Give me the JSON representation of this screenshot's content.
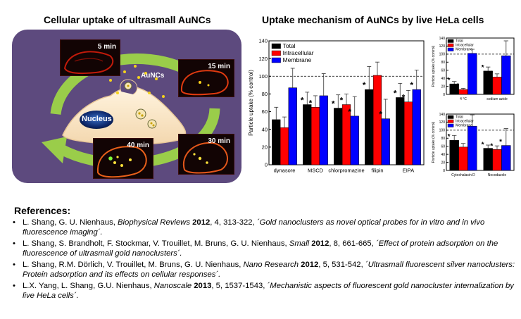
{
  "left_panel": {
    "title": "Cellular uptake of ultrasmall AuNCs",
    "aunc_label": "AuNCs",
    "nucleus_label": "Nucleus",
    "time_points": [
      "5 min",
      "15 min",
      "30 min",
      "40 min"
    ]
  },
  "right_panel": {
    "title": "Uptake mechanism of AuNCs by live HeLa cells"
  },
  "chart_data": [
    {
      "type": "bar",
      "ylabel": "Particle uptake (% control)",
      "ylim": [
        0,
        140
      ],
      "yticks": [
        0,
        20,
        40,
        60,
        80,
        100,
        120,
        140
      ],
      "categories": [
        "dynasore",
        "MSCD",
        "chlorpromazine",
        "filipin",
        "EIPA"
      ],
      "series": [
        {
          "name": "Total",
          "color": "#000000",
          "values": [
            51,
            68,
            64,
            85,
            76
          ],
          "errors": [
            14,
            14,
            15,
            26,
            16
          ],
          "significant": [
            false,
            true,
            true,
            true,
            true
          ]
        },
        {
          "name": "Intracellular",
          "color": "#ff0000",
          "values": [
            42,
            65,
            68,
            101,
            71
          ],
          "errors": [
            12,
            13,
            12,
            15,
            13
          ],
          "significant": [
            false,
            true,
            true,
            false,
            true
          ]
        },
        {
          "name": "Membrane",
          "color": "#0000ff",
          "values": [
            87,
            78,
            55,
            52,
            85
          ],
          "errors": [
            22,
            25,
            22,
            22,
            22
          ],
          "significant": [
            false,
            false,
            true,
            true,
            true
          ]
        }
      ],
      "reference_line": 100,
      "legend_position": "top-left"
    },
    {
      "type": "bar",
      "ylabel": "Particle uptake (% control)",
      "ylim": [
        0,
        140
      ],
      "yticks": [
        0,
        20,
        40,
        60,
        80,
        100,
        120,
        140
      ],
      "categories": [
        "4 °C",
        "sodium azide"
      ],
      "series": [
        {
          "name": "Total",
          "color": "#000000",
          "values": [
            26,
            58
          ],
          "errors": [
            6,
            10
          ],
          "significant": [
            true,
            true
          ]
        },
        {
          "name": "Intracellular",
          "color": "#ff0000",
          "values": [
            12,
            43
          ],
          "errors": [
            3,
            8
          ],
          "significant": [
            true,
            true
          ]
        },
        {
          "name": "Membrane",
          "color": "#0000ff",
          "values": [
            102,
            96
          ],
          "errors": [
            10,
            37
          ],
          "significant": [
            false,
            false
          ]
        }
      ],
      "reference_line": 100,
      "legend_position": "top-left"
    },
    {
      "type": "bar",
      "ylabel": "Particle uptake (% control)",
      "ylim": [
        0,
        140
      ],
      "yticks": [
        0,
        20,
        40,
        60,
        80,
        100,
        120,
        140
      ],
      "categories": [
        "Cytochalasin D",
        "Nocodazole"
      ],
      "series": [
        {
          "name": "Total",
          "color": "#000000",
          "values": [
            75,
            55
          ],
          "errors": [
            12,
            8
          ],
          "significant": [
            true,
            true
          ]
        },
        {
          "name": "Intracellular",
          "color": "#ff0000",
          "values": [
            58,
            52
          ],
          "errors": [
            9,
            9
          ],
          "significant": [
            true,
            true
          ]
        },
        {
          "name": "Membrane",
          "color": "#0000ff",
          "values": [
            110,
            62
          ],
          "errors": [
            28,
            42
          ],
          "significant": [
            false,
            true
          ]
        }
      ],
      "reference_line": 100,
      "legend_position": "top-left"
    }
  ],
  "references": {
    "heading": "References:",
    "items": [
      {
        "authors": "L. Shang, G. U. Nienhaus, ",
        "journal": "Biophysical Reviews",
        "year": "2012",
        "rest": ", 4, 313-322, ",
        "title": "´Gold nanoclusters as novel optical probes for in vitro and in vivo fluorescence imaging´."
      },
      {
        "authors": "L. Shang, S. Brandholt, F. Stockmar, V. Trouillet, M. Bruns, G. U. Nienhaus, ",
        "journal": "Small",
        "year": "2012",
        "rest": ", 8, 661-665, ",
        "title": "´Effect of protein adsorption on the fluorescence of ultrasmall gold nanoclusters´."
      },
      {
        "authors": "L. Shang, R.M. Dörlich, V. Trouillet, M. Bruns, G. U. Nienhaus, ",
        "journal": "Nano Research",
        "year": "2012",
        "rest": ", 5, 531-542, ",
        "title": "´Ultrasmall fluorescent silver nanoclusters: Protein adsorption and its effects on cellular responses´."
      },
      {
        "authors": "L.X. Yang, L. Shang, G.U. Nienhaus, ",
        "journal": "Nanoscale",
        "year": "2013",
        "rest": ", 5, 1537-1543, ",
        "title": "´Mechanistic aspects of fluorescent gold nanocluster internalization by live HeLa cells´."
      }
    ]
  }
}
